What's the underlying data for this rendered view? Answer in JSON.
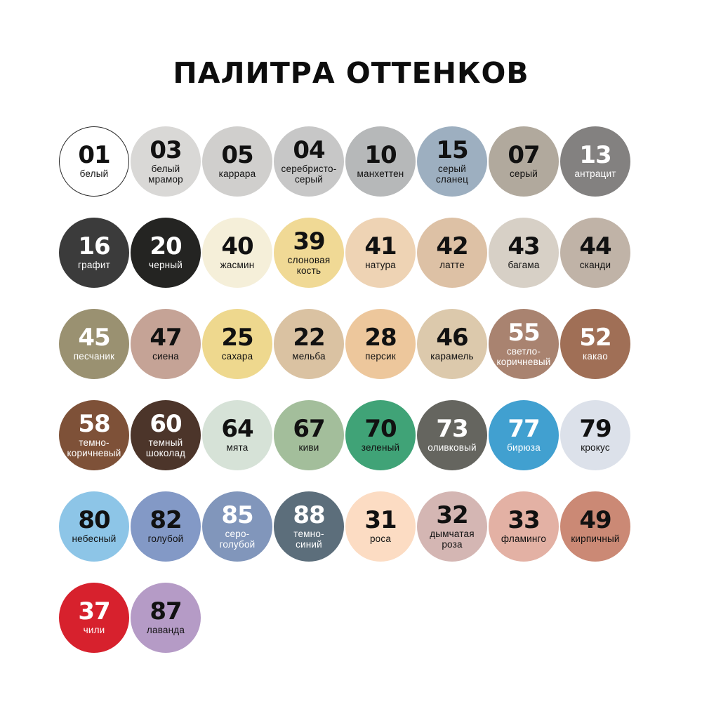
{
  "title": "ПАЛИТРА ОТТЕНКОВ",
  "palette": {
    "rows": [
      [
        {
          "code": "01",
          "name": "белый",
          "bg": "#ffffff",
          "fg": "#111111",
          "border": "#2a2a2a"
        },
        {
          "code": "03",
          "name": "белый\nмрамор",
          "bg": "#d9d8d6",
          "fg": "#111111"
        },
        {
          "code": "05",
          "name": "каррара",
          "bg": "#d0cfcd",
          "fg": "#111111"
        },
        {
          "code": "04",
          "name": "серебристо-\nсерый",
          "bg": "#c7c7c7",
          "fg": "#111111"
        },
        {
          "code": "10",
          "name": "манхеттен",
          "bg": "#b6b8b9",
          "fg": "#111111"
        },
        {
          "code": "15",
          "name": "серый\nсланец",
          "bg": "#9dafc0",
          "fg": "#111111"
        },
        {
          "code": "07",
          "name": "серый",
          "bg": "#b1a99d",
          "fg": "#111111"
        },
        {
          "code": "13",
          "name": "антрацит",
          "bg": "#838180",
          "fg": "#ffffff"
        }
      ],
      [
        {
          "code": "16",
          "name": "графит",
          "bg": "#3b3b3b",
          "fg": "#ffffff"
        },
        {
          "code": "20",
          "name": "черный",
          "bg": "#242422",
          "fg": "#ffffff"
        },
        {
          "code": "40",
          "name": "жасмин",
          "bg": "#f5efd9",
          "fg": "#111111"
        },
        {
          "code": "39",
          "name": "слоновая\nкость",
          "bg": "#f0d995",
          "fg": "#111111"
        },
        {
          "code": "41",
          "name": "натура",
          "bg": "#eed3b4",
          "fg": "#111111"
        },
        {
          "code": "42",
          "name": "латте",
          "bg": "#ddc1a5",
          "fg": "#111111"
        },
        {
          "code": "43",
          "name": "багама",
          "bg": "#d7d0c6",
          "fg": "#111111"
        },
        {
          "code": "44",
          "name": "сканди",
          "bg": "#c0b3a7",
          "fg": "#111111"
        }
      ],
      [
        {
          "code": "45",
          "name": "песчаник",
          "bg": "#9a9171",
          "fg": "#ffffff"
        },
        {
          "code": "47",
          "name": "сиена",
          "bg": "#c5a396",
          "fg": "#111111"
        },
        {
          "code": "25",
          "name": "сахара",
          "bg": "#eed88e",
          "fg": "#111111"
        },
        {
          "code": "22",
          "name": "мельба",
          "bg": "#dac2a2",
          "fg": "#111111"
        },
        {
          "code": "28",
          "name": "персик",
          "bg": "#edc79c",
          "fg": "#111111"
        },
        {
          "code": "46",
          "name": "карамель",
          "bg": "#dcc9ac",
          "fg": "#111111"
        },
        {
          "code": "55",
          "name": "светло-\nкоричневый",
          "bg": "#a98370",
          "fg": "#ffffff"
        },
        {
          "code": "52",
          "name": "какао",
          "bg": "#a06f56",
          "fg": "#ffffff"
        }
      ],
      [
        {
          "code": "58",
          "name": "темно-\nкоричневый",
          "bg": "#7e5138",
          "fg": "#ffffff"
        },
        {
          "code": "60",
          "name": "темный\nшоколад",
          "bg": "#4c352a",
          "fg": "#ffffff"
        },
        {
          "code": "64",
          "name": "мята",
          "bg": "#d6e2d7",
          "fg": "#111111"
        },
        {
          "code": "67",
          "name": "киви",
          "bg": "#a3be9b",
          "fg": "#111111"
        },
        {
          "code": "70",
          "name": "зеленый",
          "bg": "#40a377",
          "fg": "#111111"
        },
        {
          "code": "73",
          "name": "оливковый",
          "bg": "#65655f",
          "fg": "#ffffff"
        },
        {
          "code": "77",
          "name": "бирюза",
          "bg": "#41a0d0",
          "fg": "#ffffff"
        },
        {
          "code": "79",
          "name": "крокус",
          "bg": "#dce1ea",
          "fg": "#111111"
        }
      ],
      [
        {
          "code": "80",
          "name": "небесный",
          "bg": "#8dc5e7",
          "fg": "#111111"
        },
        {
          "code": "82",
          "name": "голубой",
          "bg": "#8399c6",
          "fg": "#111111"
        },
        {
          "code": "85",
          "name": "серо-\nголубой",
          "bg": "#8196bb",
          "fg": "#ffffff"
        },
        {
          "code": "88",
          "name": "темно-\nсиний",
          "bg": "#5c6e7b",
          "fg": "#ffffff"
        },
        {
          "code": "31",
          "name": "роса",
          "bg": "#fcdcc3",
          "fg": "#111111"
        },
        {
          "code": "32",
          "name": "дымчатая\nроза",
          "bg": "#d4b6b3",
          "fg": "#111111"
        },
        {
          "code": "33",
          "name": "фламинго",
          "bg": "#e3b1a4",
          "fg": "#111111"
        },
        {
          "code": "49",
          "name": "кирпичный",
          "bg": "#cb8975",
          "fg": "#111111"
        }
      ],
      [
        {
          "code": "37",
          "name": "чили",
          "bg": "#d7212d",
          "fg": "#ffffff"
        },
        {
          "code": "87",
          "name": "лаванда",
          "bg": "#b59bc6",
          "fg": "#111111"
        }
      ]
    ]
  }
}
